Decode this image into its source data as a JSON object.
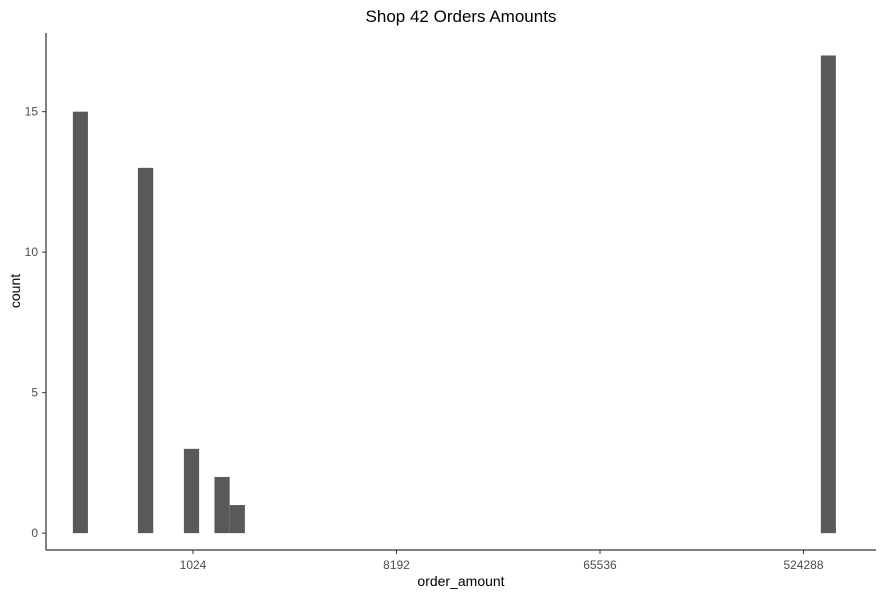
{
  "chart_data": {
    "type": "bar",
    "title": "Shop 42 Orders Amounts",
    "xlabel": "order_amount",
    "ylabel": "count",
    "x_scale": "log2",
    "x_ticks": [
      1024,
      8192,
      65536,
      524288
    ],
    "x_tick_labels": [
      "1024",
      "8192",
      "65536",
      "524288"
    ],
    "y_ticks": [
      0,
      5,
      10,
      15
    ],
    "y_tick_labels": [
      "0",
      "5",
      "10",
      "15"
    ],
    "xlim": [
      228,
      1100000
    ],
    "ylim": [
      -0.6,
      17.8
    ],
    "bar_color": "#595959",
    "grid": false,
    "bins": [
      {
        "x0": 300,
        "x1": 350,
        "count": 15
      },
      {
        "x0": 583,
        "x1": 682,
        "count": 13
      },
      {
        "x0": 933,
        "x1": 1090,
        "count": 3
      },
      {
        "x0": 1275,
        "x1": 1490,
        "count": 2
      },
      {
        "x0": 1490,
        "x1": 1740,
        "count": 1
      },
      {
        "x0": 626000,
        "x1": 730000,
        "count": 17
      }
    ]
  }
}
